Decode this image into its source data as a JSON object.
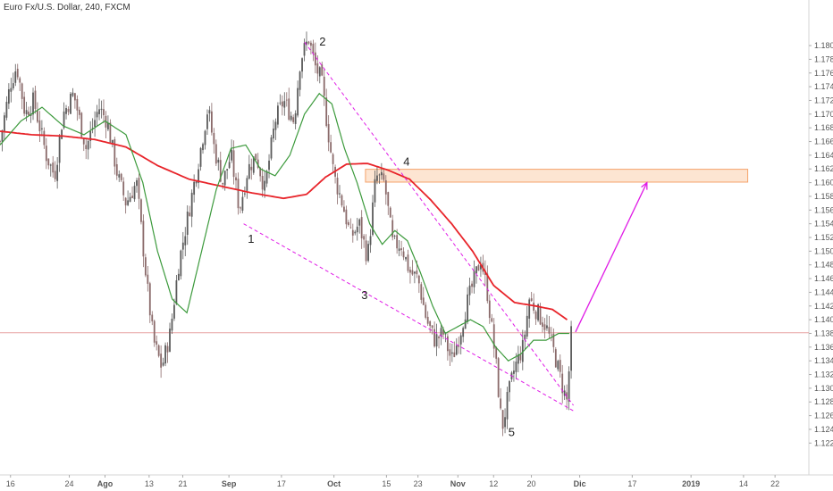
{
  "symbol_title": "Euro Fx/U.S. Dollar, 240, FXCM",
  "colors": {
    "candle_up": "#5b5b5b",
    "candle_down": "#8a6a6a",
    "ma_red": "#e8242a",
    "ma_green": "#3c9a3c",
    "pattern": "#e01be6",
    "hline": "#e7a1a1",
    "zone_fill": "#fde5d2",
    "zone_stroke": "#f5a36b",
    "arrow": "#e01be6",
    "axis_text": "#555555"
  },
  "chart_data": {
    "type": "line",
    "title": "Euro Fx/U.S. Dollar, 240, FXCM",
    "y_axis": {
      "side": "right",
      "ylim": [
        1.118,
        1.186
      ],
      "ticks": [
        "1.18000",
        "1.17800",
        "1.17600",
        "1.17400",
        "1.17200",
        "1.17000",
        "1.16800",
        "1.16600",
        "1.16400",
        "1.16200",
        "1.16000",
        "1.15800",
        "1.15600",
        "1.15400",
        "1.15200",
        "1.15000",
        "1.14800",
        "1.14600",
        "1.14400",
        "1.14200",
        "1.14000",
        "1.13800",
        "1.13600",
        "1.13400",
        "1.13200",
        "1.13000",
        "1.12800",
        "1.12600",
        "1.12400",
        "1.12200"
      ]
    },
    "x_axis": {
      "ticks": [
        {
          "label": "16",
          "x": 0.5
        },
        {
          "label": "24",
          "x": 3.3
        },
        {
          "label": "Ago",
          "x": 5.0
        },
        {
          "label": "13",
          "x": 7.1
        },
        {
          "label": "21",
          "x": 8.7
        },
        {
          "label": "Sep",
          "x": 10.9
        },
        {
          "label": "17",
          "x": 13.4
        },
        {
          "label": "Oct",
          "x": 15.9
        },
        {
          "label": "15",
          "x": 18.4
        },
        {
          "label": "23",
          "x": 19.9
        },
        {
          "label": "Nov",
          "x": 21.8
        },
        {
          "label": "12",
          "x": 23.5
        },
        {
          "label": "20",
          "x": 25.3
        },
        {
          "label": "Dic",
          "x": 27.6
        },
        {
          "label": "17",
          "x": 30.1
        },
        {
          "label": "2019",
          "x": 32.9
        },
        {
          "label": "14",
          "x": 35.4
        },
        {
          "label": "22",
          "x": 36.9
        }
      ],
      "bold_labels": [
        "Ago",
        "Sep",
        "Oct",
        "Nov",
        "Dic",
        "2019"
      ]
    },
    "price_anchors": [
      [
        0.0,
        1.166
      ],
      [
        0.5,
        1.1745
      ],
      [
        0.8,
        1.177
      ],
      [
        1.2,
        1.17
      ],
      [
        1.6,
        1.172
      ],
      [
        2.2,
        1.164
      ],
      [
        2.6,
        1.161
      ],
      [
        3.0,
        1.17
      ],
      [
        3.5,
        1.173
      ],
      [
        4.1,
        1.165
      ],
      [
        4.7,
        1.171
      ],
      [
        5.1,
        1.169
      ],
      [
        5.6,
        1.161
      ],
      [
        6.0,
        1.157
      ],
      [
        6.5,
        1.16
      ],
      [
        7.0,
        1.145
      ],
      [
        7.3,
        1.137
      ],
      [
        7.7,
        1.133
      ],
      [
        8.1,
        1.138
      ],
      [
        8.5,
        1.148
      ],
      [
        9.0,
        1.156
      ],
      [
        9.5,
        1.164
      ],
      [
        9.9,
        1.171
      ],
      [
        10.2,
        1.165
      ],
      [
        10.6,
        1.16
      ],
      [
        11.0,
        1.164
      ],
      [
        11.4,
        1.156
      ],
      [
        11.8,
        1.162
      ],
      [
        12.2,
        1.164
      ],
      [
        12.6,
        1.159
      ],
      [
        13.1,
        1.169
      ],
      [
        13.5,
        1.172
      ],
      [
        14.0,
        1.169
      ],
      [
        14.3,
        1.178
      ],
      [
        14.7,
        1.181
      ],
      [
        15.0,
        1.177
      ],
      [
        15.3,
        1.175
      ],
      [
        15.6,
        1.168
      ],
      [
        15.9,
        1.161
      ],
      [
        16.3,
        1.157
      ],
      [
        16.7,
        1.152
      ],
      [
        17.1,
        1.154
      ],
      [
        17.5,
        1.149
      ],
      [
        17.9,
        1.161
      ],
      [
        18.3,
        1.16
      ],
      [
        18.7,
        1.151
      ],
      [
        19.1,
        1.151
      ],
      [
        19.5,
        1.147
      ],
      [
        19.9,
        1.146
      ],
      [
        20.3,
        1.14
      ],
      [
        20.7,
        1.137
      ],
      [
        21.1,
        1.138
      ],
      [
        21.5,
        1.134
      ],
      [
        21.9,
        1.138
      ],
      [
        22.2,
        1.142
      ],
      [
        22.6,
        1.146
      ],
      [
        22.9,
        1.149
      ],
      [
        23.2,
        1.144
      ],
      [
        23.6,
        1.134
      ],
      [
        23.9,
        1.124
      ],
      [
        24.2,
        1.129
      ],
      [
        24.5,
        1.133
      ],
      [
        24.9,
        1.136
      ],
      [
        25.2,
        1.143
      ],
      [
        25.6,
        1.141
      ],
      [
        26.0,
        1.139
      ],
      [
        26.4,
        1.135
      ],
      [
        26.8,
        1.13
      ],
      [
        27.0,
        1.128
      ],
      [
        27.2,
        1.138
      ]
    ],
    "ma_red_anchors": [
      [
        0.0,
        1.1675
      ],
      [
        1.5,
        1.167
      ],
      [
        3.0,
        1.1668
      ],
      [
        4.5,
        1.1663
      ],
      [
        6.0,
        1.1652
      ],
      [
        7.5,
        1.1625
      ],
      [
        9.0,
        1.1605
      ],
      [
        10.5,
        1.1595
      ],
      [
        12.0,
        1.1585
      ],
      [
        13.5,
        1.1577
      ],
      [
        14.6,
        1.1583
      ],
      [
        15.5,
        1.1608
      ],
      [
        16.5,
        1.1627
      ],
      [
        17.5,
        1.1628
      ],
      [
        18.5,
        1.1618
      ],
      [
        19.5,
        1.1605
      ],
      [
        20.5,
        1.1575
      ],
      [
        21.5,
        1.154
      ],
      [
        22.5,
        1.15
      ],
      [
        23.5,
        1.145
      ],
      [
        24.5,
        1.1425
      ],
      [
        25.5,
        1.142
      ],
      [
        26.3,
        1.1415
      ],
      [
        27.0,
        1.14
      ]
    ],
    "ma_green_anchors": [
      [
        0.0,
        1.1655
      ],
      [
        1.0,
        1.169
      ],
      [
        2.0,
        1.171
      ],
      [
        3.0,
        1.1683
      ],
      [
        4.0,
        1.167
      ],
      [
        5.0,
        1.169
      ],
      [
        6.0,
        1.167
      ],
      [
        6.8,
        1.16
      ],
      [
        7.5,
        1.15
      ],
      [
        8.2,
        1.143
      ],
      [
        8.9,
        1.141
      ],
      [
        9.6,
        1.15
      ],
      [
        10.3,
        1.159
      ],
      [
        11.0,
        1.165
      ],
      [
        11.7,
        1.1655
      ],
      [
        12.4,
        1.162
      ],
      [
        13.1,
        1.161
      ],
      [
        13.8,
        1.164
      ],
      [
        14.5,
        1.17
      ],
      [
        15.2,
        1.173
      ],
      [
        15.8,
        1.1715
      ],
      [
        16.4,
        1.165
      ],
      [
        17.0,
        1.16
      ],
      [
        17.6,
        1.154
      ],
      [
        18.2,
        1.151
      ],
      [
        18.8,
        1.153
      ],
      [
        19.4,
        1.1515
      ],
      [
        20.0,
        1.147
      ],
      [
        20.6,
        1.142
      ],
      [
        21.2,
        1.138
      ],
      [
        21.8,
        1.139
      ],
      [
        22.4,
        1.14
      ],
      [
        23.0,
        1.139
      ],
      [
        23.6,
        1.136
      ],
      [
        24.2,
        1.134
      ],
      [
        24.8,
        1.135
      ],
      [
        25.4,
        1.137
      ],
      [
        26.0,
        1.137
      ],
      [
        26.6,
        1.138
      ],
      [
        27.1,
        1.138
      ]
    ],
    "annotations": {
      "horizontal_line": 1.1381,
      "resistance_zone": {
        "x_from": 17.4,
        "x_to": 35.6,
        "y_from": 1.1606,
        "y_to": 1.1613
      },
      "pattern_lines": [
        {
          "from": [
            14.5,
            1.1805
          ],
          "to": [
            27.3,
            1.1275
          ]
        },
        {
          "from": [
            11.6,
            1.154
          ],
          "to": [
            27.3,
            1.1267
          ]
        }
      ],
      "projection_arrow": {
        "from": [
          27.4,
          1.1382
        ],
        "to": [
          30.8,
          1.16
        ]
      },
      "wave_labels": [
        {
          "text": "1",
          "x": 11.8,
          "y": 1.1512
        },
        {
          "text": "2",
          "x": 15.2,
          "y": 1.18
        },
        {
          "text": "3",
          "x": 17.2,
          "y": 1.143
        },
        {
          "text": "4",
          "x": 19.2,
          "y": 1.1625
        },
        {
          "text": "5",
          "x": 24.2,
          "y": 1.123
        }
      ]
    }
  }
}
